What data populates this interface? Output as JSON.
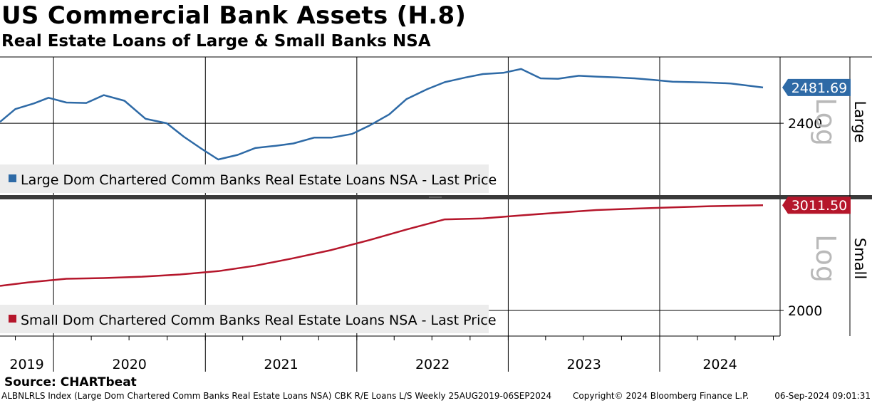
{
  "title": "US Commercial Bank Assets (H.8)",
  "subtitle": "Real Estate Loans of Large & Small Banks NSA",
  "source": "Source: CHARTbeat",
  "footer": {
    "left": "ALBNLRLS Index (Large Dom Chartered Comm Banks Real Estate Loans NSA) CBK R/E Loans L/S  Weekly 25AUG2019-06SEP2024",
    "middle": "Copyright© 2024 Bloomberg Finance L.P.",
    "right": "06-Sep-2024 09:01:31"
  },
  "chart_data": [
    {
      "type": "line",
      "panel_label": "Large",
      "scale_label": "Log",
      "log_scale": true,
      "legend": "Large Dom Chartered Comm Banks Real Estate Loans NSA - Last Price",
      "color": "#2e6aa6",
      "last_value": "2481.69",
      "y_ticks": [
        2400
      ],
      "y_tick_labels": [
        "2400"
      ],
      "ylim": [
        2250,
        2540
      ],
      "x": [
        "2019-08-25",
        "2019-10-01",
        "2019-11-15",
        "2019-12-20",
        "2020-02-01",
        "2020-03-20",
        "2020-05-01",
        "2020-06-20",
        "2020-08-10",
        "2020-09-30",
        "2020-11-10",
        "2020-12-20",
        "2021-02-01",
        "2021-03-20",
        "2021-05-01",
        "2021-06-20",
        "2021-08-01",
        "2021-09-20",
        "2021-11-01",
        "2021-12-20",
        "2022-02-01",
        "2022-03-20",
        "2022-05-01",
        "2022-06-20",
        "2022-08-01",
        "2022-09-20",
        "2022-11-01",
        "2022-12-20",
        "2023-02-01",
        "2023-03-20",
        "2023-05-01",
        "2023-06-20",
        "2023-08-01",
        "2023-09-20",
        "2023-11-01",
        "2023-12-20",
        "2024-02-01",
        "2024-03-20",
        "2024-05-01",
        "2024-06-20",
        "2024-08-01",
        "2024-09-06"
      ],
      "values": [
        2403,
        2432,
        2445,
        2458,
        2447,
        2446,
        2464,
        2451,
        2410,
        2400,
        2370,
        2345,
        2320,
        2330,
        2345,
        2350,
        2355,
        2368,
        2368,
        2376,
        2395,
        2420,
        2455,
        2478,
        2494,
        2505,
        2513,
        2516,
        2525,
        2503,
        2502,
        2509,
        2507,
        2505,
        2503,
        2499,
        2495,
        2494,
        2493,
        2491,
        2486,
        2481.69
      ],
      "years": [
        "2019",
        "2020",
        "2021",
        "2022",
        "2023",
        "2024"
      ]
    },
    {
      "type": "line",
      "panel_label": "Small",
      "scale_label": "Log",
      "log_scale": true,
      "legend": "Small Dom Chartered Comm Banks Real Estate Loans NSA - Last Price",
      "color": "#b5162b",
      "last_value": "3011.50",
      "y_ticks": [
        2000
      ],
      "y_tick_labels": [
        "2000"
      ],
      "ylim": [
        1830,
        3030
      ],
      "x": [
        "2019-08-25",
        "2019-11-01",
        "2020-02-01",
        "2020-05-01",
        "2020-08-01",
        "2020-11-01",
        "2021-02-01",
        "2021-05-01",
        "2021-08-01",
        "2021-11-01",
        "2022-02-01",
        "2022-05-01",
        "2022-08-01",
        "2022-11-01",
        "2023-02-01",
        "2023-05-01",
        "2023-08-01",
        "2023-11-01",
        "2024-02-01",
        "2024-05-01",
        "2024-09-06"
      ],
      "values": [
        2200,
        2230,
        2262,
        2268,
        2280,
        2300,
        2330,
        2380,
        2450,
        2530,
        2630,
        2740,
        2850,
        2860,
        2895,
        2925,
        2955,
        2972,
        2986,
        3000,
        3011.5
      ],
      "years": [
        "2019",
        "2020",
        "2021",
        "2022",
        "2023",
        "2024"
      ]
    }
  ]
}
